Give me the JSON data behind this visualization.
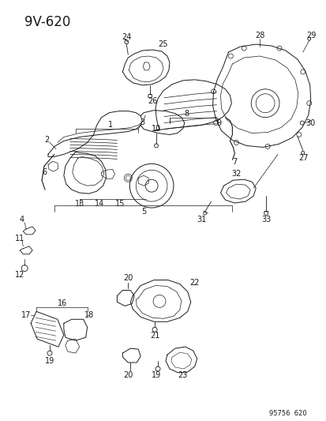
{
  "title": "9V-620",
  "footer": "95756  620",
  "bg_color": "#ffffff",
  "line_color": "#1a1a1a",
  "text_color": "#1a1a1a",
  "title_fontsize": 11,
  "label_fontsize": 7,
  "fig_width": 4.14,
  "fig_height": 5.33,
  "dpi": 100
}
